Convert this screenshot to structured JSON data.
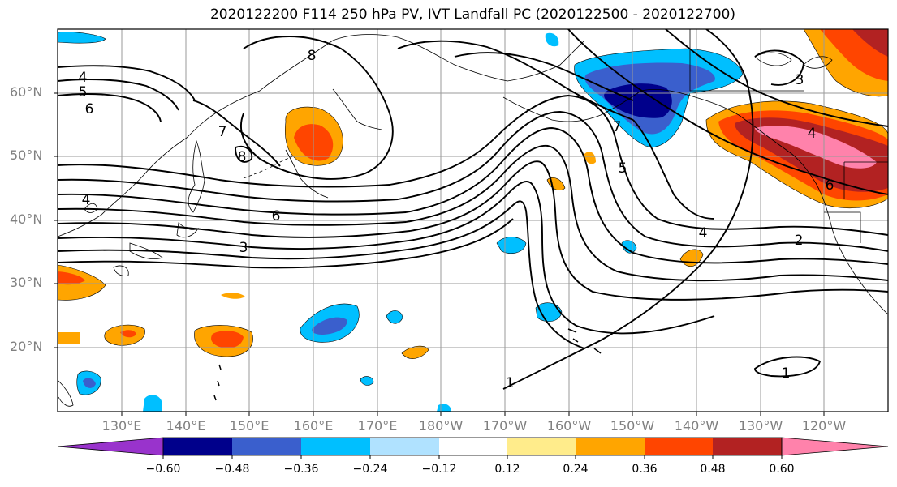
{
  "title": "2020122200 F114 250 hPa PV, IVT Landfall PC (2020122500 - 2020122700)",
  "lat_labels": [
    "60°N",
    "50°N",
    "40°N",
    "30°N",
    "20°N"
  ],
  "lon_labels": [
    "130°E",
    "140°E",
    "150°E",
    "160°E",
    "170°E",
    "180°W",
    "170°W",
    "160°W",
    "150°W",
    "140°W",
    "130°W",
    "120°W"
  ],
  "colorbar": {
    "tick_labels": [
      "−0.60",
      "−0.48",
      "−0.36",
      "−0.24",
      "−0.12",
      "0.12",
      "0.24",
      "0.36",
      "0.48",
      "0.60"
    ],
    "colors": [
      "#9933cc",
      "#00008b",
      "#3a5fcd",
      "#00bfff",
      "#b0e2ff",
      "#ffffff",
      "#ffec8b",
      "#ffa500",
      "#ff4500",
      "#b22222",
      "#ff82ab"
    ]
  },
  "contour_labels": [
    "4",
    "5",
    "6",
    "7",
    "8",
    "8",
    "4",
    "6",
    "3",
    "7",
    "5",
    "4",
    "2",
    "1",
    "1",
    "3",
    "4",
    "6"
  ]
}
